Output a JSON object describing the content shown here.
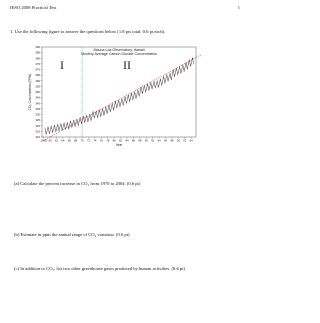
{
  "header": {
    "title": "IESO 2008 Practical Test",
    "page": "1"
  },
  "question": "1. Use the following figure to answer the questions below (1.8 pts total, 0.6 pt each).",
  "chart_data": {
    "type": "line",
    "title": "Mauna Loa Observatory, Hawaii",
    "subtitle": "Monthly Average Carbon Dioxide Concentration",
    "x_label": "Year",
    "y_label": "CO₂ Concentration (PPM)",
    "region_labels": [
      "I",
      "II"
    ],
    "divider_x": 1970,
    "divider_color": "#2a9a8a",
    "xlim": [
      1957.5,
      2005.5
    ],
    "ylim": [
      310,
      390
    ],
    "yticks": [
      310,
      315,
      320,
      325,
      330,
      335,
      340,
      345,
      350,
      355,
      360,
      365,
      370,
      375,
      380,
      385,
      390
    ],
    "xticks": [
      {
        "value": 1958,
        "label": "1958"
      },
      {
        "value": 1960,
        "label": "60"
      },
      {
        "value": 1962,
        "label": "62"
      },
      {
        "value": 1964,
        "label": "64"
      },
      {
        "value": 1966,
        "label": "66"
      },
      {
        "value": 1968,
        "label": "68"
      },
      {
        "value": 1970,
        "label": "70"
      },
      {
        "value": 1972,
        "label": "72"
      },
      {
        "value": 1974,
        "label": "74"
      },
      {
        "value": 1976,
        "label": "76"
      },
      {
        "value": 1978,
        "label": "78"
      },
      {
        "value": 1980,
        "label": "80"
      },
      {
        "value": 1982,
        "label": "82"
      },
      {
        "value": 1984,
        "label": "84"
      },
      {
        "value": 1986,
        "label": "86"
      },
      {
        "value": 1988,
        "label": "88"
      },
      {
        "value": 1990,
        "label": "90"
      },
      {
        "value": 1992,
        "label": "92"
      },
      {
        "value": 1994,
        "label": "94"
      },
      {
        "value": 1996,
        "label": "96"
      },
      {
        "value": 1998,
        "label": "98"
      },
      {
        "value": 2000,
        "label": "00"
      },
      {
        "value": 2002,
        "label": "02"
      },
      {
        "value": 2004,
        "label": "04"
      }
    ],
    "x": [
      1958.4,
      1958.8,
      1959.4,
      1959.8,
      1960.4,
      1960.8,
      1961.4,
      1961.8,
      1962.4,
      1962.8,
      1963.4,
      1963.8,
      1964.4,
      1964.8,
      1965.4,
      1965.8,
      1966.4,
      1966.8,
      1967.4,
      1967.8,
      1968.4,
      1968.8,
      1969.4,
      1969.8,
      1970.4,
      1970.8,
      1971.4,
      1971.8,
      1972.4,
      1972.8,
      1973.4,
      1973.8,
      1974.4,
      1974.8,
      1975.4,
      1975.8,
      1976.4,
      1976.8,
      1977.4,
      1977.8,
      1978.4,
      1978.8,
      1979.4,
      1979.8,
      1980.4,
      1980.8,
      1981.4,
      1981.8,
      1982.4,
      1982.8,
      1983.4,
      1983.8,
      1984.4,
      1984.8,
      1985.4,
      1985.8,
      1986.4,
      1986.8,
      1987.4,
      1987.8,
      1988.4,
      1988.8,
      1989.4,
      1989.8,
      1990.4,
      1990.8,
      1991.4,
      1991.8,
      1992.4,
      1992.8,
      1993.4,
      1993.8,
      1994.4,
      1994.8,
      1995.4,
      1995.8,
      1996.4,
      1996.8,
      1997.4,
      1997.8,
      1998.4,
      1998.8,
      1999.4,
      1999.8,
      2000.4,
      2000.8,
      2001.4,
      2001.8,
      2002.4,
      2002.8,
      2003.4,
      2003.8,
      2004.4,
      2004.8
    ],
    "series": [
      {
        "color": "#222222",
        "values": [
          318.3,
          312.3,
          319.0,
          313.0,
          319.9,
          313.9,
          320.6,
          314.6,
          321.5,
          315.5,
          322.0,
          316.0,
          322.6,
          316.6,
          323.0,
          317.0,
          324.4,
          318.4,
          325.2,
          319.2,
          326.0,
          320.0,
          327.6,
          321.6,
          328.7,
          322.7,
          329.3,
          323.3,
          330.5,
          324.5,
          332.7,
          326.7,
          333.2,
          327.2,
          334.1,
          328.1,
          335.1,
          329.1,
          336.8,
          330.8,
          338.4,
          332.4,
          339.8,
          333.8,
          341.7,
          335.7,
          342.9,
          336.9,
          344.1,
          338.1,
          345.8,
          339.8,
          347.4,
          341.4,
          348.9,
          342.9,
          350.2,
          344.2,
          351.9,
          345.9,
          354.5,
          348.5,
          355.9,
          349.9,
          357.2,
          351.2,
          358.6,
          352.6,
          359.4,
          353.4,
          360.1,
          354.1,
          361.8,
          355.8,
          363.8,
          357.8,
          365.6,
          359.6,
          366.7,
          360.7,
          369.7,
          363.7,
          371.4,
          365.4,
          372.5,
          366.5,
          374.1,
          368.1,
          376.2,
          370.2,
          378.8,
          372.8,
          380.5,
          374.5
        ]
      }
    ],
    "trend_line": {
      "color": "#e02020",
      "x": [
        1958,
        2007
      ],
      "values": [
        307,
        383
      ]
    }
  },
  "questions": [
    "(a) Calculate the percent increase in CO₂ from 1970 to 2004. (0.6 pt)",
    "(b) Estimate in ppm the annual range of CO₂ variation. (0.6 pt)",
    "(c) In addition to CO₂, list two other greenhouse gases produced by human activities. (0.6 pt)"
  ]
}
